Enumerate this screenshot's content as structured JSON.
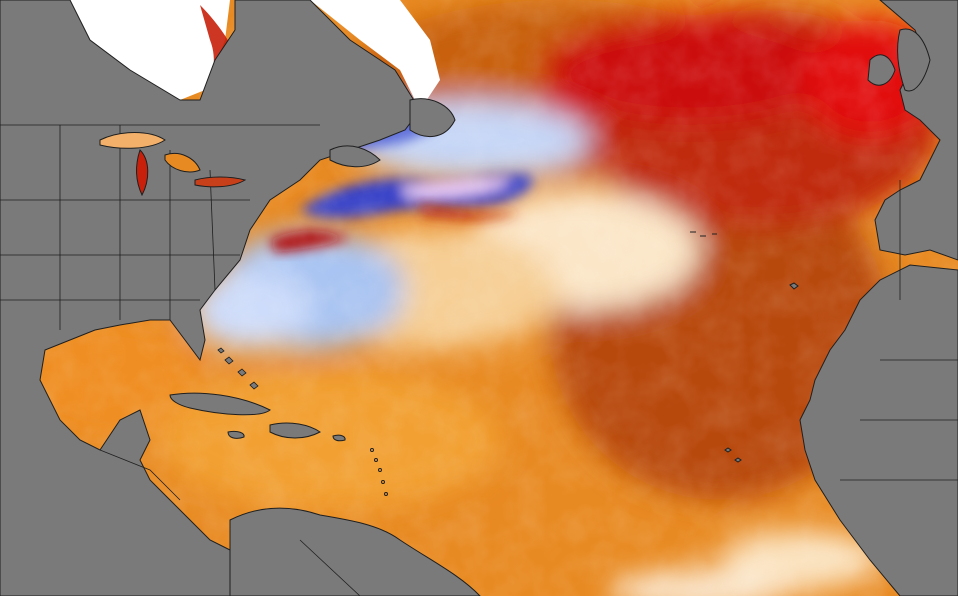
{
  "map": {
    "type": "sea-surface-temperature-anomaly",
    "region": "North Atlantic",
    "colors": {
      "land": "#7a7a7a",
      "border": "#1f1f1f",
      "ocean_base": "#e88a22",
      "warm_light": "#f4c07a",
      "warm_strong": "#c24a0a",
      "hot": "#c41010",
      "hottest": "#e00a0a",
      "neutral": "#ffffff",
      "cool": "#9fb8ee",
      "cold": "#3a44c8",
      "coldest": "#e8c8f0"
    }
  }
}
